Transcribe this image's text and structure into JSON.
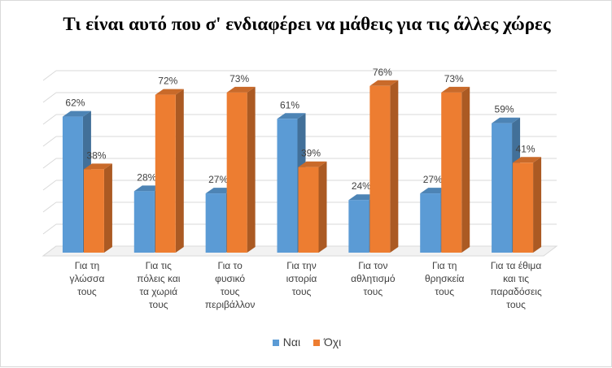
{
  "chart_data": {
    "type": "bar",
    "title": "Τι είναι αυτό που σ' ενδιαφέρει να μάθεις για τις άλλες χώρες",
    "categories": [
      [
        "Για τη",
        "γλώσσα",
        "τους"
      ],
      [
        "Για τις",
        "πόλεις και",
        "τα χωριά",
        "τους"
      ],
      [
        "Για το",
        "φυσικό",
        "τους",
        "περιβάλλον"
      ],
      [
        "Για την",
        "ιστορία",
        "τους"
      ],
      [
        "Για τον",
        "αθλητισμό",
        "τους"
      ],
      [
        "Για τη",
        "θρησκεία",
        "τους"
      ],
      [
        "Για τα έθιμα",
        "και τις",
        "παραδόσεις",
        "τους"
      ]
    ],
    "series": [
      {
        "name": "Ναι",
        "color": "#5b9bd5",
        "values": [
          62,
          28,
          27,
          61,
          24,
          27,
          59
        ],
        "labels": [
          "62%",
          "28%",
          "27%",
          "61%",
          "24%",
          "27%",
          "59%"
        ]
      },
      {
        "name": "Όχι",
        "color": "#ed7d31",
        "values": [
          38,
          72,
          73,
          39,
          76,
          73,
          41
        ],
        "labels": [
          "38%",
          "72%",
          "73%",
          "39%",
          "76%",
          "73%",
          "41%"
        ]
      }
    ],
    "ylim": [
      0,
      80
    ],
    "grid": true,
    "style": "3d-clustered-column",
    "legend_position": "bottom"
  }
}
